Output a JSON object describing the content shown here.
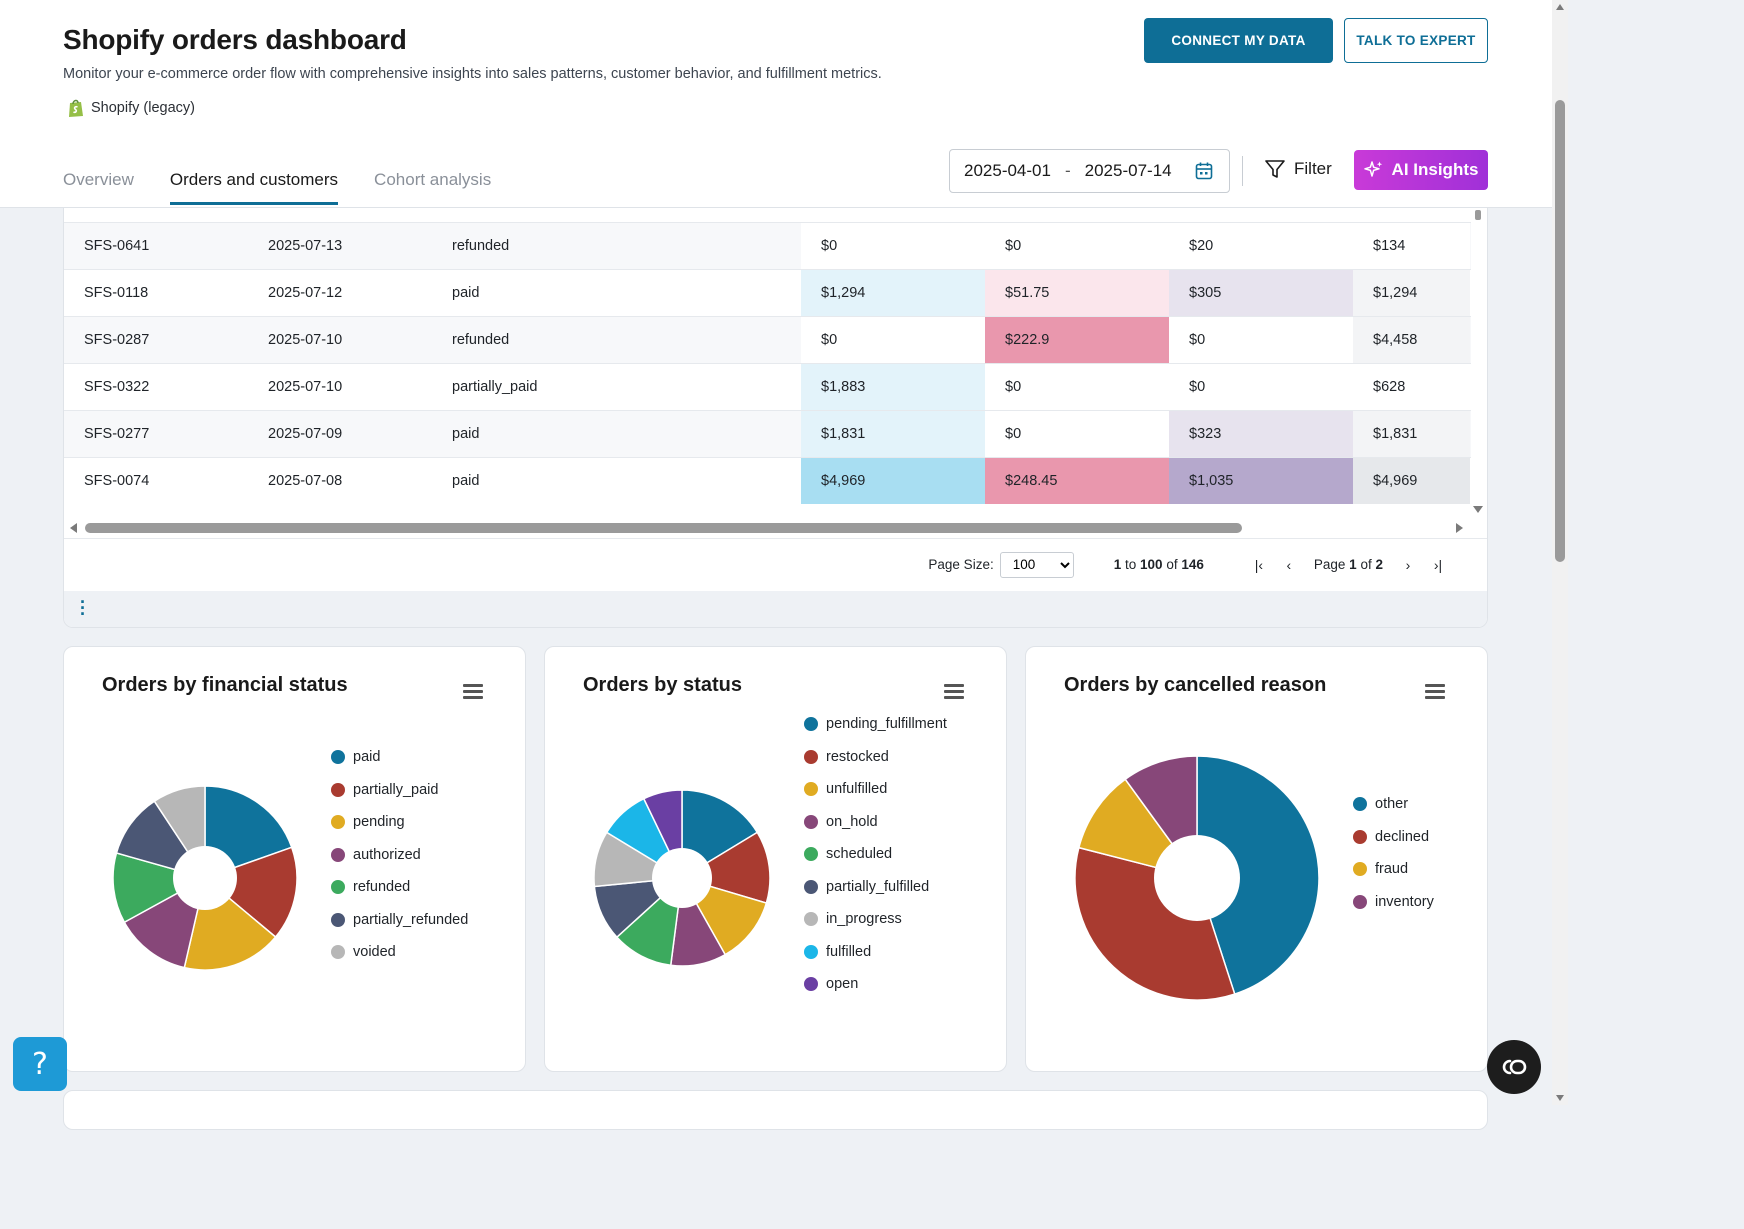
{
  "header": {
    "title": "Shopify orders dashboard",
    "subtitle": "Monitor your e-commerce order flow with comprehensive insights into sales patterns, customer behavior, and fulfillment metrics.",
    "source": "Shopify (legacy)",
    "connect_label": "CONNECT MY DATA",
    "expert_label": "TALK TO EXPERT"
  },
  "tabs": [
    {
      "label": "Overview",
      "active": false
    },
    {
      "label": "Orders and customers",
      "active": true
    },
    {
      "label": "Cohort analysis",
      "active": false
    }
  ],
  "toolbar": {
    "date_start": "2025-04-01",
    "date_sep": "-",
    "date_end": "2025-07-14",
    "filter_label": "Filter",
    "ai_label": "AI Insights"
  },
  "table": {
    "rows": [
      {
        "id": "SFS-0641",
        "date": "2025-07-13",
        "status": "refunded",
        "v1": "$0",
        "v2": "$0",
        "v3": "$20",
        "v4": "$134",
        "s1": 0,
        "s2": 0,
        "s3": 0,
        "s4": 0
      },
      {
        "id": "SFS-0118",
        "date": "2025-07-12",
        "status": "paid",
        "v1": "$1,294",
        "v2": "$51.75",
        "v3": "$305",
        "v4": "$1,294",
        "s1": 1,
        "s2": 1,
        "s3": 1,
        "s4": 1
      },
      {
        "id": "SFS-0287",
        "date": "2025-07-10",
        "status": "refunded",
        "v1": "$0",
        "v2": "$222.9",
        "v3": "$0",
        "v4": "$4,458",
        "s1": 0,
        "s2": 3,
        "s3": 0,
        "s4": 1
      },
      {
        "id": "SFS-0322",
        "date": "2025-07-10",
        "status": "partially_paid",
        "v1": "$1,883",
        "v2": "$0",
        "v3": "$0",
        "v4": "$628",
        "s1": 1,
        "s2": 0,
        "s3": 0,
        "s4": 0
      },
      {
        "id": "SFS-0277",
        "date": "2025-07-09",
        "status": "paid",
        "v1": "$1,831",
        "v2": "$0",
        "v3": "$323",
        "v4": "$1,831",
        "s1": 1,
        "s2": 0,
        "s3": 1,
        "s4": 1
      },
      {
        "id": "SFS-0074",
        "date": "2025-07-08",
        "status": "paid",
        "v1": "$4,969",
        "v2": "$248.45",
        "v3": "$1,035",
        "v4": "$4,969",
        "s1": 3,
        "s2": 3,
        "s3": 3,
        "s4": 2
      }
    ],
    "heat_colors": {
      "c1": [
        "#ffffff",
        "#e3f3fa",
        "#cdeaf7",
        "#a8def2"
      ],
      "c2": [
        "#ffffff",
        "#fbe6ec",
        "#f3c4d0",
        "#e997ad"
      ],
      "c3": [
        "#ffffff",
        "#e7e3ee",
        "#d4cde2",
        "#b5a8cc"
      ],
      "c4": [
        "#ffffff",
        "#f3f4f6",
        "#e6e8eb",
        "#d8dbdf"
      ]
    }
  },
  "pager": {
    "page_size_label": "Page Size:",
    "page_size": "100",
    "range_from": "1",
    "range_to_word": "to",
    "range_to": "100",
    "of_word": "of",
    "total": "146",
    "page_word": "Page",
    "page": "1",
    "page_of_word": "of",
    "pages": "2"
  },
  "chart_data": [
    {
      "type": "pie",
      "title": "Orders by financial status",
      "categories": [
        "paid",
        "partially_paid",
        "pending",
        "authorized",
        "refunded",
        "partially_refunded",
        "voided"
      ],
      "values": [
        19,
        16,
        17,
        13,
        12,
        11,
        9
      ],
      "colors": [
        "#0f739c",
        "#a93b30",
        "#e0ab22",
        "#874779",
        "#3caa5e",
        "#4b5775",
        "#b7b7b7"
      ],
      "legend_position": "right",
      "donut": true
    },
    {
      "type": "pie",
      "title": "Orders by status",
      "categories": [
        "pending_fulfillment",
        "restocked",
        "unfulfilled",
        "on_hold",
        "scheduled",
        "partially_fulfilled",
        "in_progress",
        "fulfilled",
        "open"
      ],
      "values": [
        16,
        13,
        12,
        10,
        11,
        10,
        10,
        9,
        7
      ],
      "colors": [
        "#0f739c",
        "#a93b30",
        "#e0ab22",
        "#874779",
        "#3caa5e",
        "#4b5775",
        "#b7b7b7",
        "#1bb6e8",
        "#6a3fa3"
      ],
      "legend_position": "right",
      "donut": true
    },
    {
      "type": "pie",
      "title": "Orders by cancelled reason",
      "categories": [
        "other",
        "declined",
        "fraud",
        "inventory"
      ],
      "values": [
        45,
        34,
        11,
        10
      ],
      "colors": [
        "#0f739c",
        "#a93b30",
        "#e0ab22",
        "#874779"
      ],
      "legend_position": "right",
      "donut": true
    }
  ]
}
